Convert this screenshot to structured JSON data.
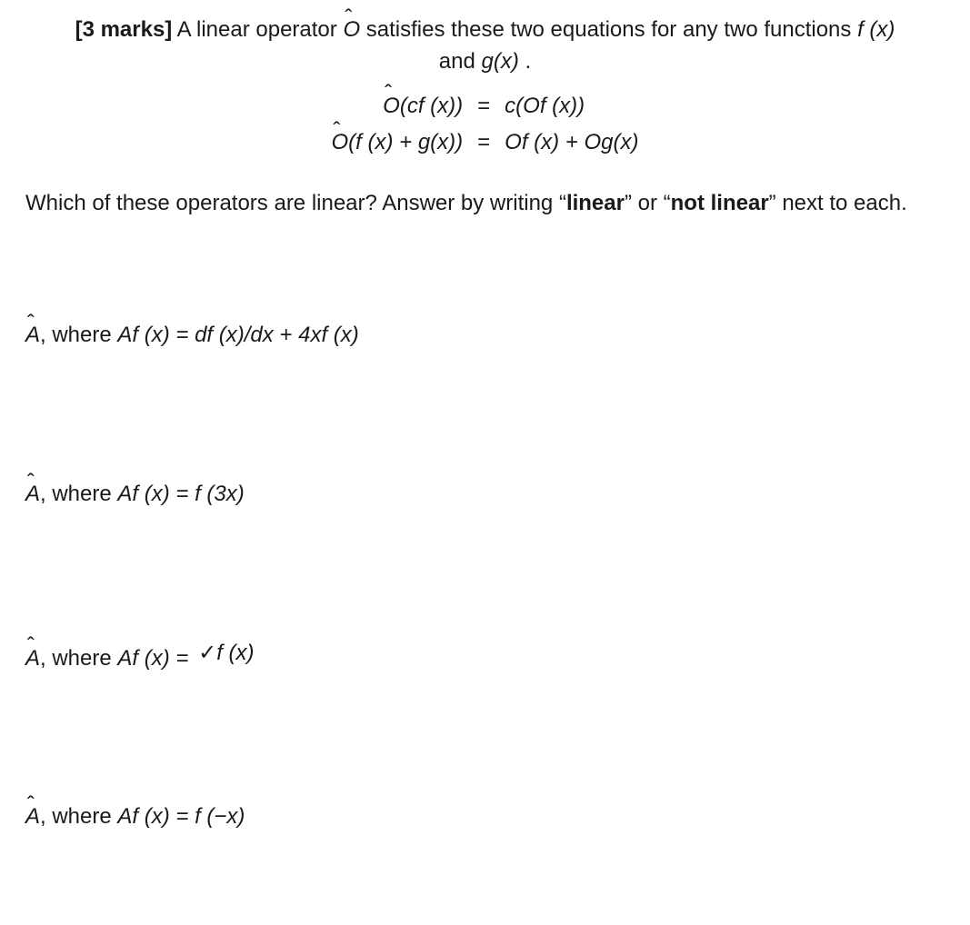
{
  "marks_label": "[3 marks]",
  "intro_1a": " A linear operator ",
  "intro_op": "O",
  "intro_1b": " satisfies these two equations for any two functions ",
  "intro_fx": "f (x)",
  "intro_and": " and ",
  "intro_gx": "g(x)",
  "intro_period": ".",
  "eq1_lhs_pre": "O",
  "eq1_lhs_post": "(cf (x))",
  "eq_sign": "=",
  "eq1_rhs": "c(Of (x))",
  "eq2_lhs_pre": "O",
  "eq2_lhs_post": "(f (x) + g(x))",
  "eq2_rhs": "Of (x) + Og(x)",
  "question_a": "Which of these operators are linear? Answer by writing “",
  "question_linear": "linear",
  "question_b": "” or “",
  "question_notlinear": "not linear",
  "question_c": "” next to each.",
  "item_A": "A",
  "item_comma_where": ", where ",
  "item1_expr": "Af (x) = df (x)/dx + 4xf (x)",
  "item2_expr": "Af (x) = f (3x)",
  "item3_prefix": "Af (x) = ",
  "item3_radicand": "f (x)",
  "item4_expr": "Af (x) = f (−x)",
  "colors": {
    "text": "#1a1a1a",
    "background": "#ffffff"
  },
  "fontsize_pt": 18
}
